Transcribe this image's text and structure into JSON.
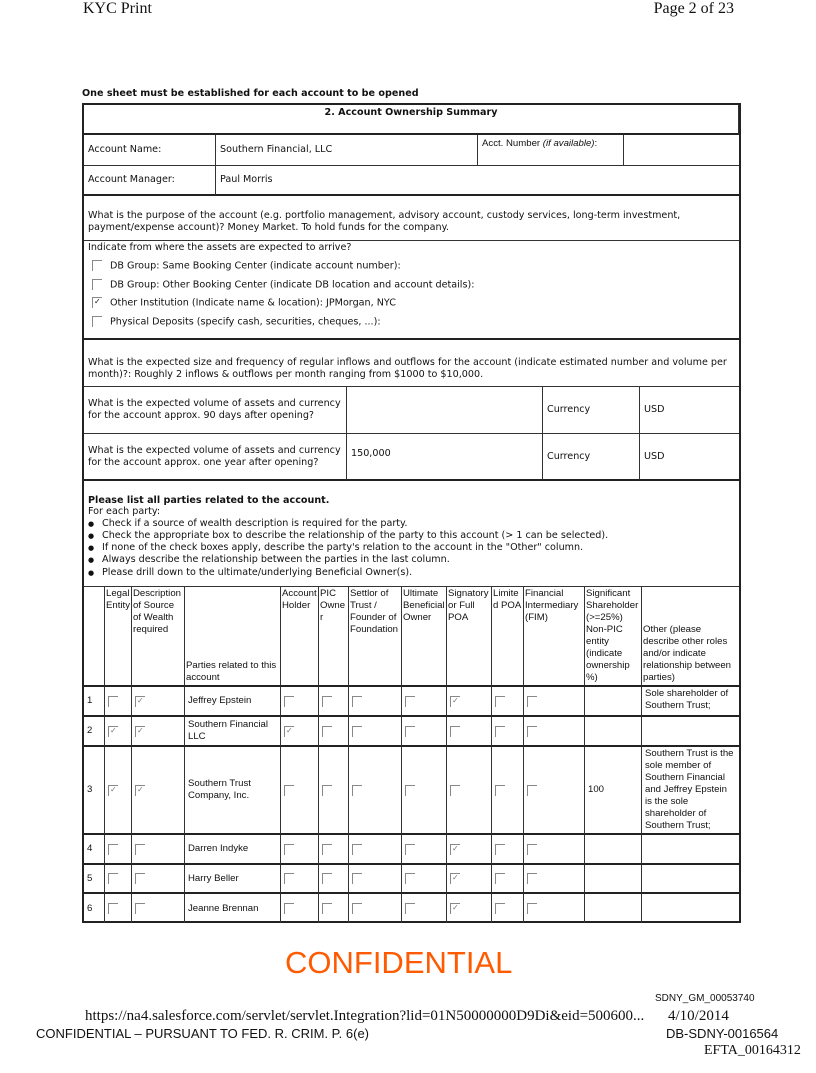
{
  "header": {
    "left": "KYC Print",
    "right": "Page 2 of 23"
  },
  "instruction": "One sheet must be established for each account to be opened",
  "section_title": "2. Account Ownership Summary",
  "account": {
    "name_label": "Account Name:",
    "name_value": "Southern Financial, LLC",
    "number_label": "Acct. Number ",
    "number_hint": "(if available)",
    "number_suffix": ":",
    "number_value": "",
    "manager_label": "Account Manager:",
    "manager_value": "Paul Morris"
  },
  "purpose": "What is the purpose of the account (e.g. portfolio management, advisory account, custody services, long-term investment, payment/expense account)?  Money Market. To hold funds for the company.",
  "assets": {
    "label": "Indicate from where the assets are expected to arrive?",
    "options": [
      {
        "label": "DB Group: Same Booking Center (indicate account number):",
        "checked": false
      },
      {
        "label": "DB Group: Other Booking Center (indicate DB location and account details):",
        "checked": false
      },
      {
        "label": "Other Institution (Indicate name & location):  JPMorgan, NYC",
        "checked": true
      },
      {
        "label": "Physical Deposits (specify cash, securities, cheques, ...):",
        "checked": false
      }
    ]
  },
  "flows": "What is the expected size and frequency of regular inflows and outflows for the account (indicate estimated number and volume per month)?:  Roughly 2 inflows & outflows per month ranging from $1000 to $10,000.",
  "volume_90": {
    "label": "What is the expected volume of assets and currency for the account approx. 90 days after opening?",
    "value": "",
    "currency_label": "Currency",
    "currency": "USD"
  },
  "volume_1y": {
    "label": "What is the expected volume of assets and currency for the account approx. one year after opening?",
    "value": "150,000",
    "currency_label": "Currency",
    "currency": "USD"
  },
  "parties_intro": {
    "title": "Please list all parties related to the account.",
    "sub": "For each party:",
    "bullets": [
      "Check if a source of wealth description is required for the party.",
      "Check the appropriate box to describe the relationship of the party to this account (> 1 can be selected).",
      "If none of the check boxes apply, describe the party's relation to the account in the \"Other\" column.",
      "Always describe the relationship between the parties in the last column.",
      "Please drill down to the ultimate/underlying Beneficial Owner(s)."
    ]
  },
  "columns": [
    "",
    "Legal Entity",
    "Description of Source of Wealth required",
    "Parties related to this account",
    "Account Holder",
    "PIC Owner",
    "Settlor of Trust / Founder of Foundation",
    "Ultimate Beneficial Owner",
    "Signatory or Full POA",
    "Limited POA",
    "Financial Intermediary (FIM)",
    "Significant Shareholder (>=25%) Non-PIC entity (indicate ownership %)",
    "Other (please describe other roles and/or indicate relationship between parties)"
  ],
  "rows": [
    {
      "num": "1",
      "legal": false,
      "sow": true,
      "party": "Jeffrey Epstein",
      "checks": [
        false,
        false,
        false,
        false,
        true,
        false,
        false
      ],
      "ownership": "",
      "other": "Sole shareholder of Southern Trust;"
    },
    {
      "num": "2",
      "legal": true,
      "sow": true,
      "party": "Southern Financial LLC",
      "checks": [
        true,
        false,
        false,
        false,
        false,
        false,
        false
      ],
      "ownership": "",
      "other": ""
    },
    {
      "num": "3",
      "legal": true,
      "sow": true,
      "party": "Southern Trust Company, Inc.",
      "checks": [
        false,
        false,
        false,
        false,
        false,
        false,
        false
      ],
      "ownership": "100",
      "other": "Southern Trust is the sole member of Southern Financial and Jeffrey Epstein is the sole shareholder of Southern Trust;"
    },
    {
      "num": "4",
      "legal": false,
      "sow": false,
      "party": "Darren Indyke",
      "checks": [
        false,
        false,
        false,
        false,
        true,
        false,
        false
      ],
      "ownership": "",
      "other": ""
    },
    {
      "num": "5",
      "legal": false,
      "sow": false,
      "party": "Harry Beller",
      "checks": [
        false,
        false,
        false,
        false,
        true,
        false,
        false
      ],
      "ownership": "",
      "other": ""
    },
    {
      "num": "6",
      "legal": false,
      "sow": false,
      "party": "Jeanne Brennan",
      "checks": [
        false,
        false,
        false,
        false,
        true,
        false,
        false
      ],
      "ownership": "",
      "other": ""
    }
  ],
  "footer": {
    "bates1": "SDNY_GM_00053740",
    "url": "https://na4.salesforce.com/servlet/servlet.Integration?lid=01N50000000D9Di&eid=500600...",
    "date": "4/10/2014",
    "confidential_stamp": "CONFIDENTIAL",
    "legend": "CONFIDENTIAL – PURSUANT TO FED. R. CRIM. P. 6(e)",
    "bates2": "DB-SDNY-0016564",
    "bates3": "EFTA_00164312"
  },
  "colors": {
    "stamp": "#ff5a00"
  }
}
